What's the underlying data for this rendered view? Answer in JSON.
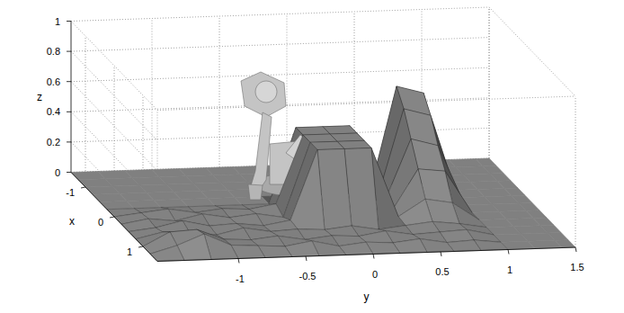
{
  "chart_data": {
    "type": "surface",
    "x_label": "x",
    "y_label": "y",
    "z_label": "z",
    "x": [
      -1.5,
      -1.25,
      -1,
      -0.75,
      -0.5,
      -0.25,
      0,
      0.25,
      0.5,
      0.75,
      1,
      1.25,
      1.5
    ],
    "y": [
      -1.6,
      -1.4,
      -1.2,
      -1.0,
      -0.8,
      -0.6,
      -0.4,
      -0.2,
      0,
      0.2,
      0.4,
      0.6,
      0.8,
      1.0,
      1.2,
      1.4,
      1.5
    ],
    "z": [
      [
        0,
        0,
        0,
        0,
        0,
        0,
        0,
        0,
        0,
        0,
        0,
        0,
        0,
        0,
        0,
        0,
        0
      ],
      [
        0,
        0,
        0,
        0,
        0,
        0,
        0,
        0,
        0,
        0,
        0,
        0,
        0,
        0,
        0,
        0,
        0
      ],
      [
        0,
        0,
        0,
        0,
        0,
        0,
        0,
        0,
        0,
        0,
        0,
        0,
        0,
        0,
        0,
        0,
        0
      ],
      [
        0,
        0,
        0,
        0,
        0,
        0,
        0,
        0,
        0,
        0,
        0,
        0,
        0,
        0,
        0,
        0,
        0
      ],
      [
        0,
        0,
        0,
        0,
        0,
        0,
        0,
        0,
        0,
        0,
        0,
        0.7,
        0.65,
        0,
        0,
        0,
        0
      ],
      [
        0,
        0,
        0,
        0,
        0,
        0,
        0,
        0.5,
        0.5,
        0.5,
        0,
        0.6,
        0.55,
        0,
        0,
        0,
        0
      ],
      [
        0,
        0.02,
        0.04,
        0.01,
        0.03,
        0.02,
        0.05,
        0.5,
        0.5,
        0.5,
        0.03,
        0.45,
        0.4,
        0,
        0,
        0,
        0
      ],
      [
        0,
        0.03,
        0.01,
        0.05,
        0.02,
        0.04,
        0.01,
        0.5,
        0.5,
        0.5,
        0.02,
        0.3,
        0.28,
        0,
        0,
        0,
        0
      ],
      [
        0,
        0.02,
        0.06,
        0.02,
        0.03,
        0.01,
        0.04,
        0.5,
        0.5,
        0.5,
        0.04,
        0.15,
        0.12,
        0,
        0,
        0,
        0
      ],
      [
        0,
        0.04,
        0.03,
        0.01,
        0.05,
        0.02,
        0.03,
        0.02,
        0.04,
        0.01,
        0.03,
        0.05,
        0.03,
        0,
        0,
        0,
        0
      ],
      [
        0,
        0.09,
        0.1,
        0.03,
        0.02,
        0.04,
        0.01,
        0.03,
        0.02,
        0.05,
        0.02,
        0.03,
        0.04,
        0,
        0,
        0,
        0
      ],
      [
        0,
        0.05,
        0.12,
        0.04,
        0.03,
        0.02,
        0.05,
        0.01,
        0.03,
        0.02,
        0.04,
        0.01,
        0.02,
        0,
        0,
        0,
        0
      ],
      [
        0,
        0,
        0,
        0,
        0,
        0,
        0,
        0,
        0,
        0,
        0,
        0,
        0,
        0,
        0,
        0,
        0
      ]
    ],
    "xlim": [
      -1.5,
      1.5
    ],
    "ylim": [
      -1.6,
      1.5
    ],
    "zlim": [
      0,
      1
    ],
    "xticks": [
      -1,
      0,
      1
    ],
    "yticks": [
      -1,
      -0.5,
      0,
      0.5,
      1,
      1.5
    ],
    "zticks": [
      0,
      0.2,
      0.4,
      0.6,
      0.8,
      1
    ],
    "grid": true,
    "color": "#808080"
  }
}
